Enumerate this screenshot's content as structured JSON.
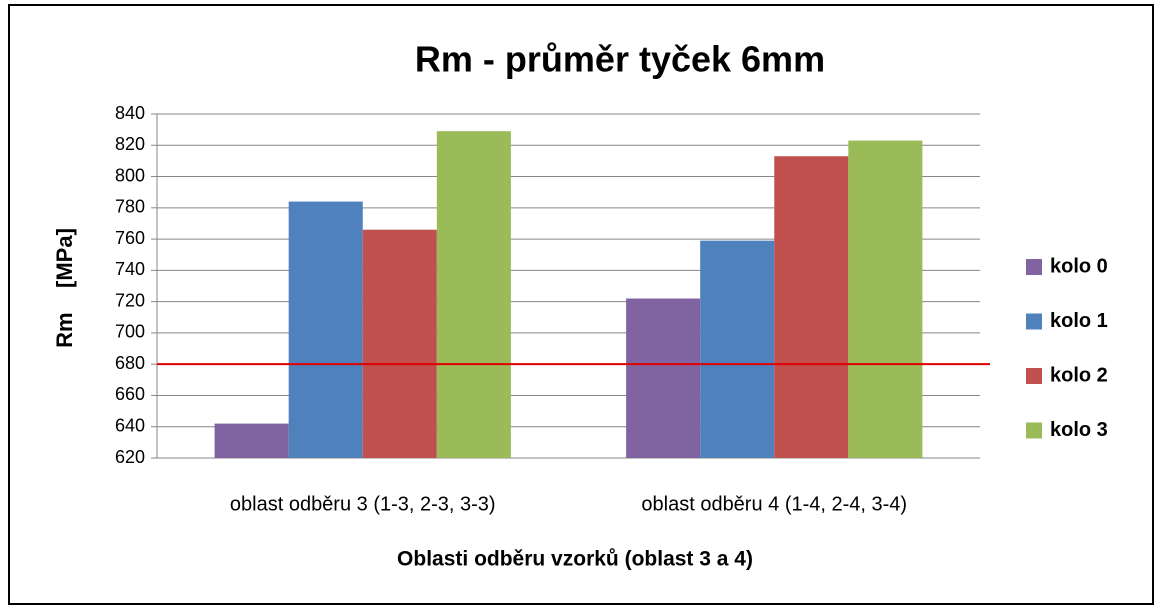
{
  "chart_data": {
    "type": "bar",
    "title": "Rm - průměr tyček 6mm",
    "y_label": "Rm    [MPa]",
    "x_label": "Oblasti odběru vzorků (oblast 3 a 4)",
    "categories": [
      "oblast odběru 3 (1-3, 2-3, 3-3)",
      "oblast odběru 4 (1-4, 2-4, 3-4)"
    ],
    "series": [
      {
        "name": "kolo 0",
        "color": "#8064a2",
        "values": [
          642,
          722
        ]
      },
      {
        "name": "kolo 1",
        "color": "#4f81bd",
        "values": [
          784,
          759
        ]
      },
      {
        "name": "kolo 2",
        "color": "#c0504d",
        "values": [
          766,
          813
        ]
      },
      {
        "name": "kolo 3",
        "color": "#9bbb59",
        "values": [
          829,
          823
        ]
      }
    ],
    "ylim": [
      620,
      840
    ],
    "yticks": [
      620,
      640,
      660,
      680,
      700,
      720,
      740,
      760,
      780,
      800,
      820,
      840
    ],
    "grid": true,
    "legend": "right",
    "reference_line": {
      "value": 680,
      "color": "#e00000"
    }
  }
}
